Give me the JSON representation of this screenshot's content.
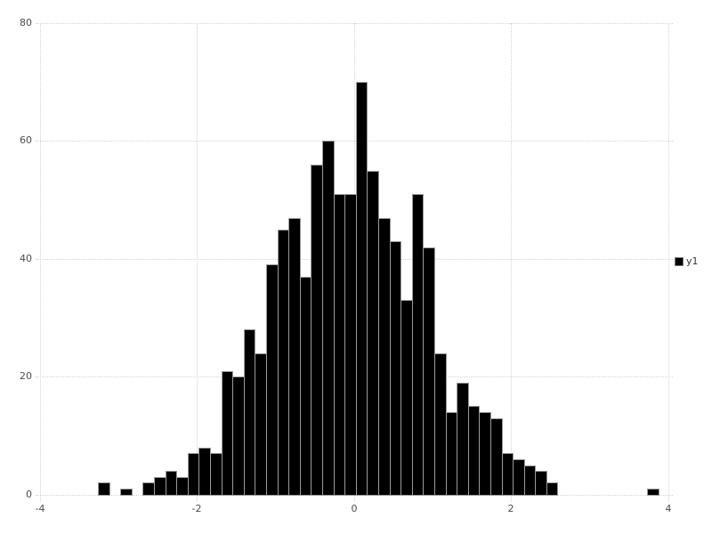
{
  "chart_data": {
    "type": "bar",
    "subtype": "histogram",
    "title": "",
    "xlabel": "",
    "ylabel": "",
    "xlim": [
      -4,
      4
    ],
    "ylim": [
      0,
      80
    ],
    "x_ticks": [
      -4,
      -2,
      0,
      2,
      4
    ],
    "y_ticks": [
      0,
      20,
      40,
      60,
      80
    ],
    "grid": true,
    "legend_position": "right-center",
    "bin_start": -3.26,
    "bin_width": 0.1427,
    "series": [
      {
        "name": "y1",
        "values": [
          2,
          0,
          1,
          0,
          2,
          3,
          4,
          3,
          7,
          8,
          7,
          21,
          20,
          28,
          24,
          39,
          45,
          47,
          37,
          56,
          60,
          51,
          51,
          70,
          55,
          47,
          43,
          33,
          51,
          42,
          24,
          14,
          19,
          15,
          14,
          13,
          7,
          6,
          5,
          4,
          2,
          0,
          0,
          0,
          0,
          0,
          0,
          0,
          0,
          1
        ]
      }
    ]
  },
  "legend": {
    "label": "y1"
  },
  "colors": {
    "background": "#ffffff",
    "bar_fill": "#000000",
    "bar_border": "#9b9b9b",
    "grid": "#d2d2e0",
    "tick_label": "#4d4d4d",
    "legend_text": "#333333",
    "legend_marker": "#000000"
  }
}
